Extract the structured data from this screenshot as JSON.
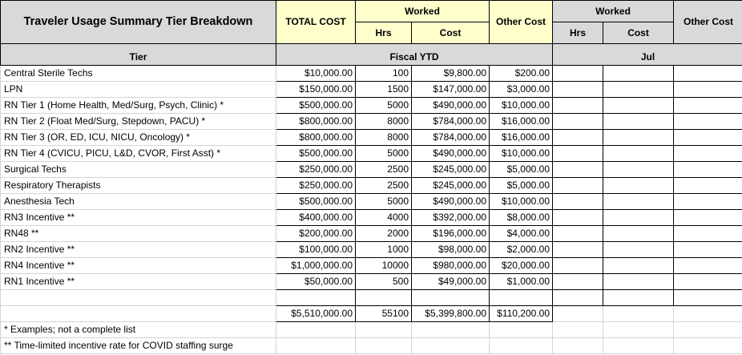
{
  "header": {
    "title": "Traveler Usage Summary Tier Breakdown",
    "total_cost": "TOTAL COST",
    "worked": "Worked",
    "other_cost": "Other Cost",
    "hrs": "Hrs",
    "cost": "Cost",
    "tier": "Tier",
    "fiscal_ytd": "Fiscal YTD",
    "jul": "Jul"
  },
  "rows": [
    {
      "tier": "Central Sterile Techs",
      "total": "$10,000.00",
      "hrs": "100",
      "cost": "$9,800.00",
      "other": "$200.00"
    },
    {
      "tier": "LPN",
      "total": "$150,000.00",
      "hrs": "1500",
      "cost": "$147,000.00",
      "other": "$3,000.00"
    },
    {
      "tier": "RN Tier 1   (Home Health, Med/Surg, Psych, Clinic) *",
      "total": "$500,000.00",
      "hrs": "5000",
      "cost": "$490,000.00",
      "other": "$10,000.00"
    },
    {
      "tier": "RN Tier 2   (Float Med/Surg, Stepdown, PACU) *",
      "total": "$800,000.00",
      "hrs": "8000",
      "cost": "$784,000.00",
      "other": "$16,000.00"
    },
    {
      "tier": "RN Tier 3   (OR, ED, ICU, NICU, Oncology) *",
      "total": "$800,000.00",
      "hrs": "8000",
      "cost": "$784,000.00",
      "other": "$16,000.00"
    },
    {
      "tier": "RN Tier 4   (CVICU, PICU, L&D, CVOR, First Asst) *",
      "total": "$500,000.00",
      "hrs": "5000",
      "cost": "$490,000.00",
      "other": "$10,000.00"
    },
    {
      "tier": "Surgical Techs",
      "total": "$250,000.00",
      "hrs": "2500",
      "cost": "$245,000.00",
      "other": "$5,000.00"
    },
    {
      "tier": "Respiratory Therapists",
      "total": "$250,000.00",
      "hrs": "2500",
      "cost": "$245,000.00",
      "other": "$5,000.00"
    },
    {
      "tier": "Anesthesia Tech",
      "total": "$500,000.00",
      "hrs": "5000",
      "cost": "$490,000.00",
      "other": "$10,000.00"
    },
    {
      "tier": "RN3 Incentive  **",
      "total": "$400,000.00",
      "hrs": "4000",
      "cost": "$392,000.00",
      "other": "$8,000.00"
    },
    {
      "tier": "RN48  **",
      "total": "$200,000.00",
      "hrs": "2000",
      "cost": "$196,000.00",
      "other": "$4,000.00"
    },
    {
      "tier": "RN2 Incentive  **",
      "total": "$100,000.00",
      "hrs": "1000",
      "cost": "$98,000.00",
      "other": "$2,000.00"
    },
    {
      "tier": "RN4 Incentive  **",
      "total": "$1,000,000.00",
      "hrs": "10000",
      "cost": "$980,000.00",
      "other": "$20,000.00"
    },
    {
      "tier": "RN1 Incentive  **",
      "total": "$50,000.00",
      "hrs": "500",
      "cost": "$49,000.00",
      "other": "$1,000.00"
    }
  ],
  "totals": {
    "total": "$5,510,000.00",
    "hrs": "55100",
    "cost": "$5,399,800.00",
    "other": "$110,200.00"
  },
  "notes": {
    "n1": "* Examples; not a complete list",
    "n2": "** Time-limited incentive rate for COVID staffing surge"
  }
}
